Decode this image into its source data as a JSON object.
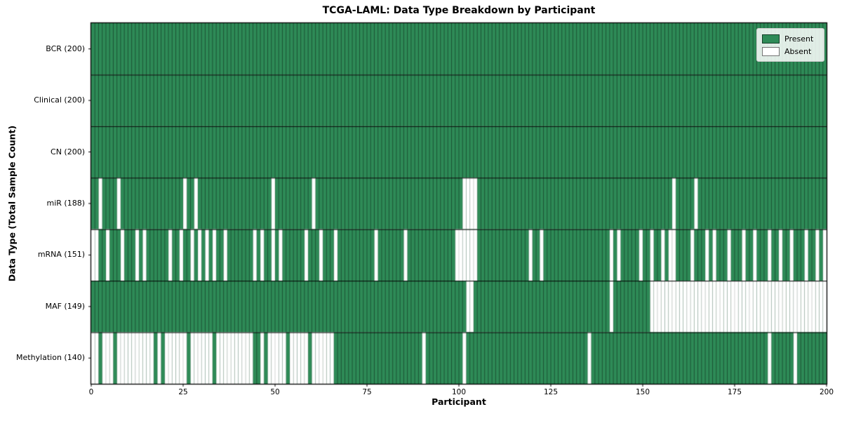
{
  "chart_data": {
    "type": "heatmap",
    "title": "TCGA-LAML: Data Type Breakdown by Participant",
    "xlabel": "Participant",
    "ylabel": "Data Type (Total Sample Count)",
    "x_range": [
      0,
      200
    ],
    "n_participants": 200,
    "x_ticks": [
      0,
      25,
      50,
      75,
      100,
      125,
      150,
      175,
      200
    ],
    "grid": "cell-edges",
    "legend": {
      "present": "Present",
      "absent": "Absent",
      "position": "upper right"
    },
    "colors": {
      "present": "#2e8b57",
      "absent": "#ffffff",
      "edge_on_present": "rgba(0,0,0,0.5)",
      "edge_on_absent": "rgba(0,0,0,0.22)",
      "border": "#000000"
    },
    "rows": [
      {
        "data_type": "BCR",
        "label": "BCR (200)",
        "present_count": 200,
        "absent_participants": []
      },
      {
        "data_type": "Clinical",
        "label": "Clinical (200)",
        "present_count": 200,
        "absent_participants": []
      },
      {
        "data_type": "CN",
        "label": "CN (200)",
        "present_count": 200,
        "absent_participants": []
      },
      {
        "data_type": "miR",
        "label": "miR (188)",
        "present_count": 188,
        "absent_participants": [
          2,
          7,
          25,
          28,
          49,
          60,
          101,
          102,
          103,
          104,
          158,
          164
        ]
      },
      {
        "data_type": "mRNA",
        "label": "mRNA (151)",
        "present_count": 151,
        "absent_participants": [
          0,
          1,
          4,
          8,
          12,
          14,
          21,
          24,
          27,
          29,
          31,
          33,
          36,
          44,
          46,
          49,
          51,
          58,
          62,
          66,
          77,
          85,
          99,
          100,
          101,
          102,
          103,
          104,
          119,
          122,
          141,
          143,
          149,
          152,
          155,
          157,
          158,
          163,
          167,
          169,
          173,
          177,
          180,
          184,
          187,
          190,
          194,
          197,
          199
        ]
      },
      {
        "data_type": "MAF",
        "label": "MAF (149)",
        "present_count": 149,
        "absent_participants": [
          102,
          103,
          141,
          152,
          153,
          154,
          155,
          156,
          157,
          158,
          159,
          160,
          161,
          162,
          163,
          164,
          165,
          166,
          167,
          168,
          169,
          170,
          171,
          172,
          173,
          174,
          175,
          176,
          177,
          178,
          179,
          180,
          181,
          182,
          183,
          184,
          185,
          186,
          187,
          188,
          189,
          190,
          191,
          192,
          193,
          194,
          195,
          196,
          197,
          198,
          199
        ]
      },
      {
        "data_type": "Methylation",
        "label": "Methylation (140)",
        "present_count": 140,
        "absent_participants": [
          0,
          1,
          3,
          4,
          5,
          7,
          8,
          9,
          10,
          11,
          12,
          13,
          14,
          15,
          16,
          18,
          20,
          21,
          22,
          23,
          24,
          25,
          27,
          28,
          29,
          30,
          31,
          32,
          34,
          35,
          36,
          37,
          38,
          39,
          40,
          41,
          42,
          43,
          46,
          48,
          49,
          50,
          51,
          52,
          54,
          55,
          56,
          57,
          58,
          60,
          61,
          62,
          63,
          64,
          65,
          90,
          101,
          135,
          184,
          191
        ]
      }
    ]
  }
}
